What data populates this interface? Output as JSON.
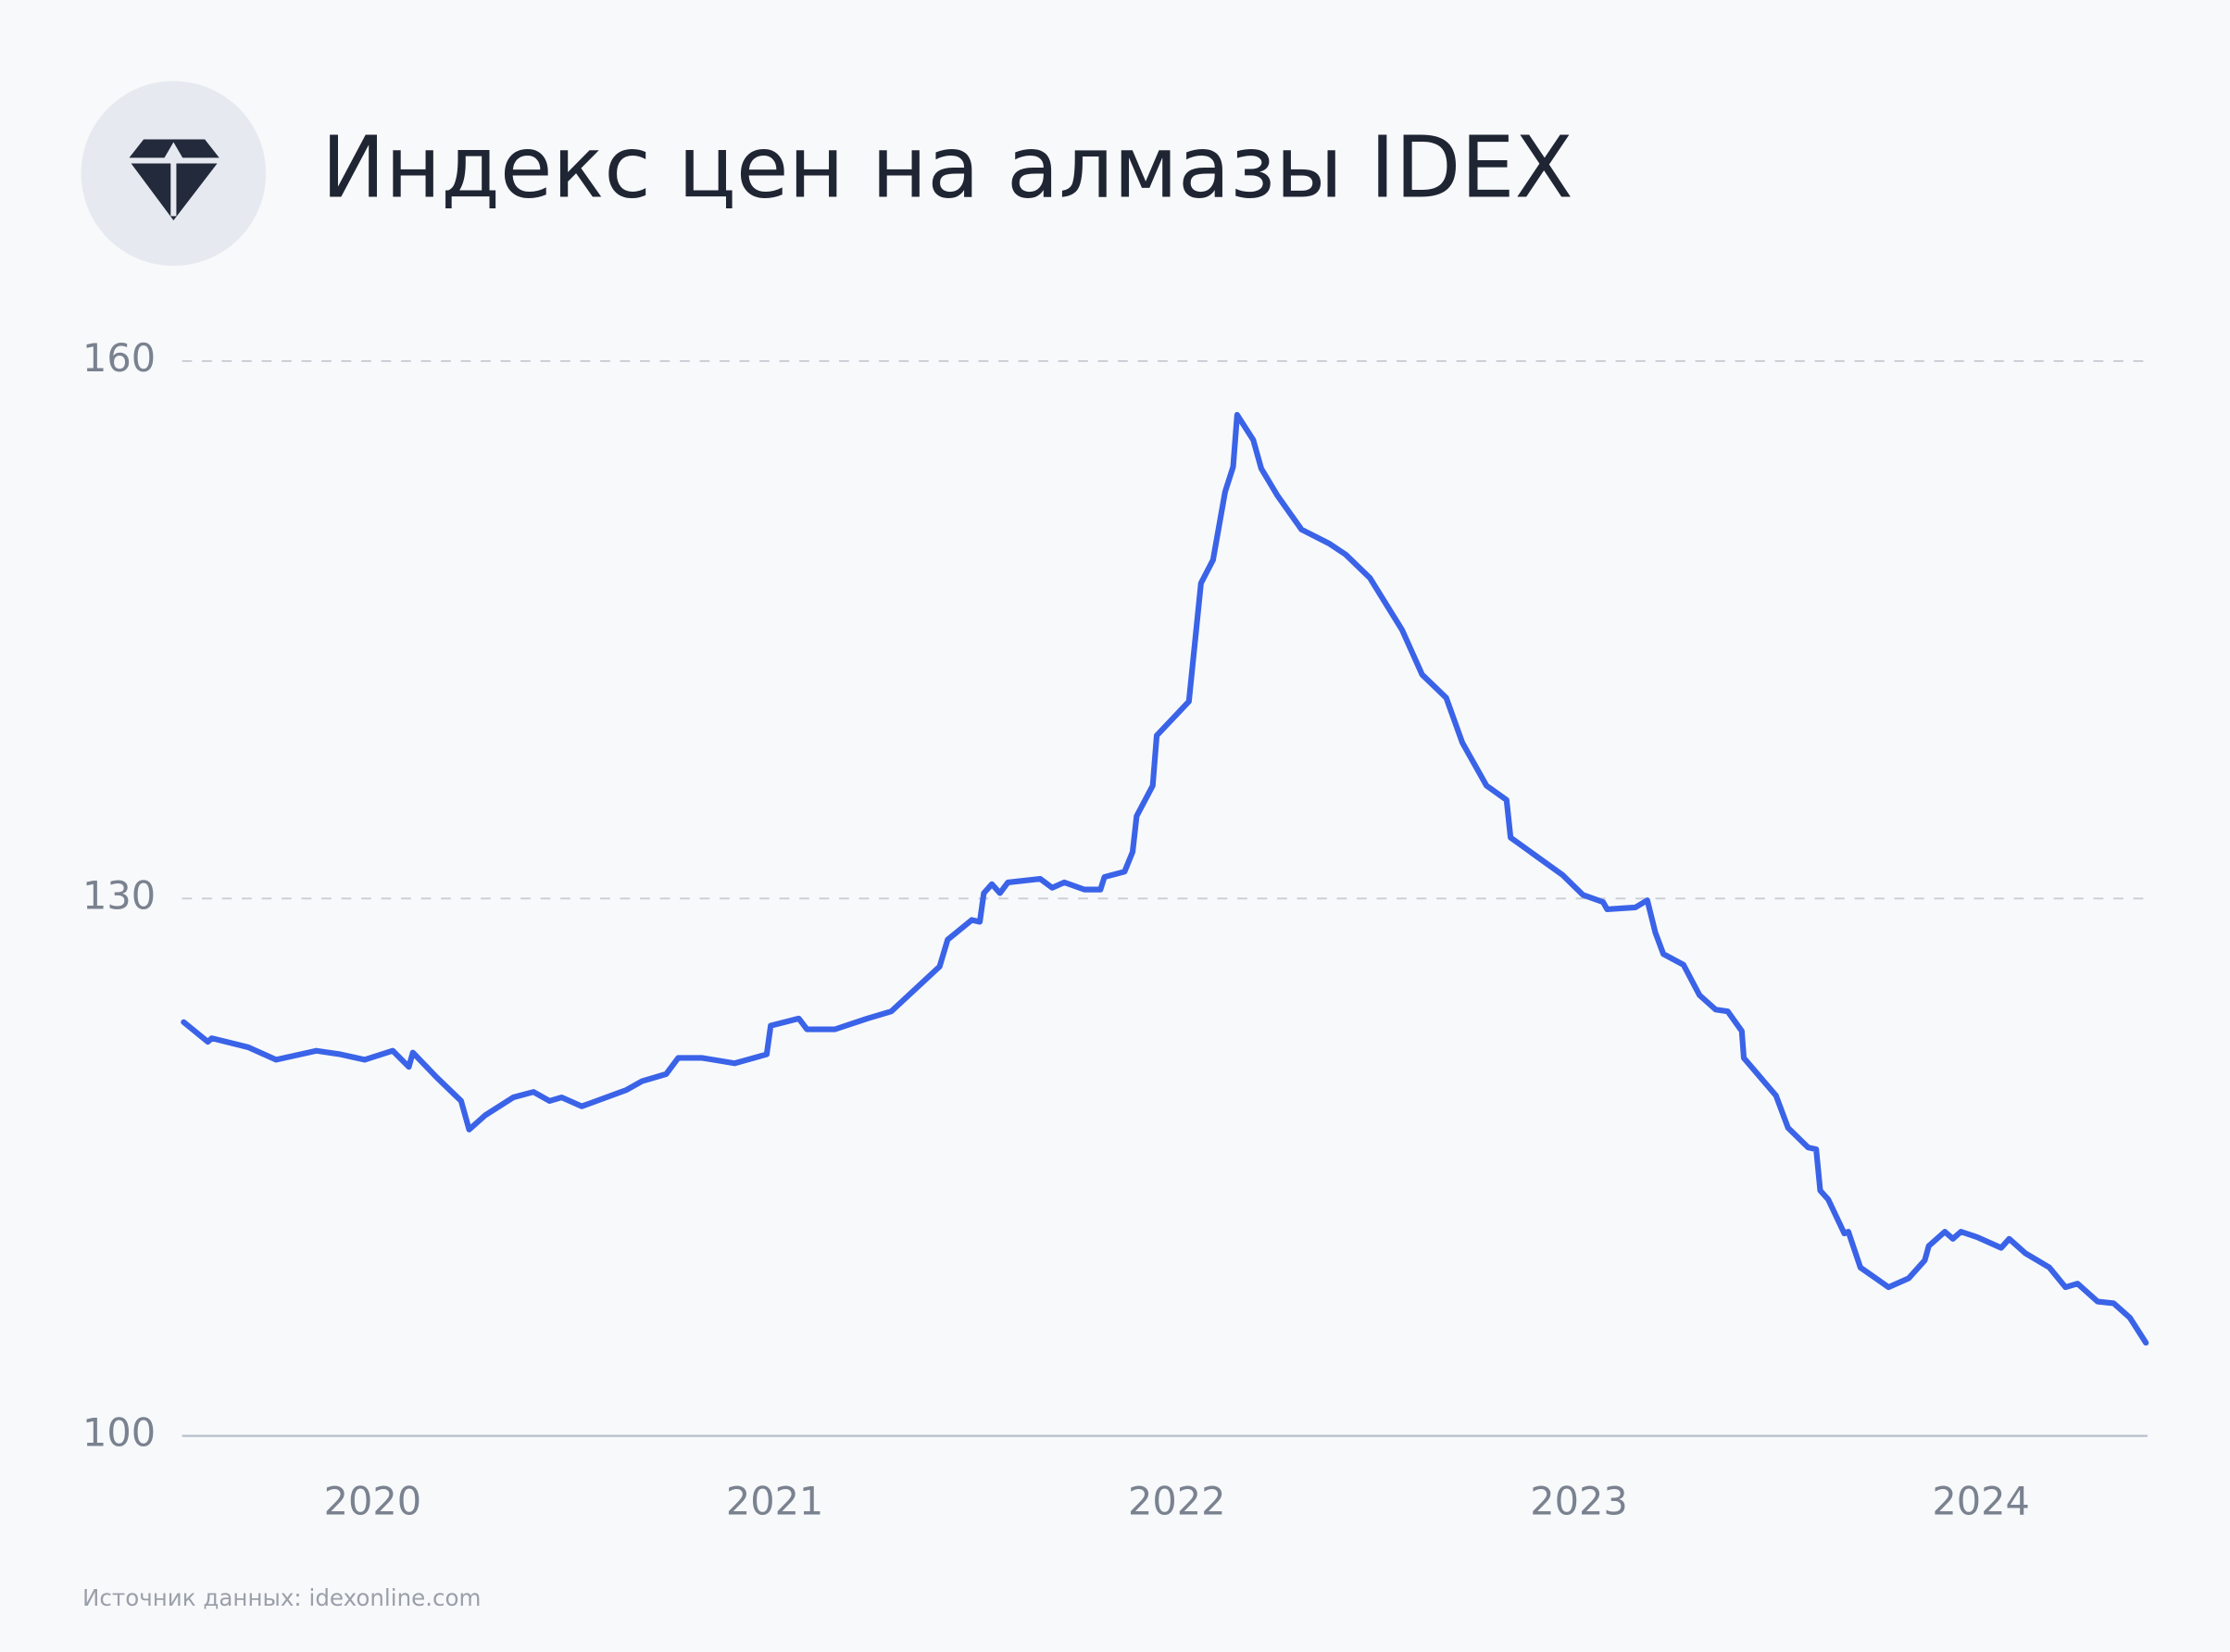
{
  "chart_data": {
    "type": "line",
    "title": "Индекс цен на алмазы IDEX",
    "source": "Источник данных: idexonline.com",
    "color": "#3a63e8",
    "grid": true,
    "xlim": [
      2019.526,
      2024.414
    ],
    "xticks": [
      2020,
      2021,
      2022,
      2023,
      2024
    ],
    "ylim": [
      100,
      160
    ],
    "yticks": [
      100,
      130,
      160
    ],
    "x": [
      2019.53,
      2019.59,
      2019.6,
      2019.69,
      2019.76,
      2019.86,
      2019.92,
      2019.98,
      2020.05,
      2020.09,
      2020.1,
      2020.16,
      2020.22,
      2020.24,
      2020.28,
      2020.35,
      2020.4,
      2020.44,
      2020.47,
      2020.52,
      2020.63,
      2020.67,
      2020.73,
      2020.76,
      2020.82,
      2020.9,
      2020.98,
      2020.99,
      2021.06,
      2021.08,
      2021.15,
      2021.23,
      2021.29,
      2021.41,
      2021.43,
      2021.49,
      2021.51,
      2021.52,
      2021.54,
      2021.56,
      2021.58,
      2021.66,
      2021.69,
      2021.72,
      2021.77,
      2021.81,
      2021.82,
      2021.87,
      2021.89,
      2021.9,
      2021.94,
      2021.95,
      2022.03,
      2022.06,
      2022.09,
      2022.12,
      2022.14,
      2022.15,
      2022.19,
      2022.21,
      2022.25,
      2022.31,
      2022.38,
      2022.42,
      2022.48,
      2022.56,
      2022.61,
      2022.67,
      2022.71,
      2022.77,
      2022.82,
      2022.83,
      2022.96,
      2023.01,
      2023.06,
      2023.07,
      2023.14,
      2023.17,
      2023.19,
      2023.21,
      2023.26,
      2023.3,
      2023.34,
      2023.37,
      2023.405,
      2023.41,
      2023.49,
      2023.52,
      2023.57,
      2023.59,
      2023.6,
      2023.62,
      2023.66,
      2023.67,
      2023.7,
      2023.77,
      2023.82,
      2023.86,
      2023.87,
      2023.91,
      2023.93,
      2023.95,
      2023.99,
      2024.05,
      2024.07,
      2024.11,
      2024.17,
      2024.21,
      2024.24,
      2024.29,
      2024.33,
      2024.37,
      2024.41
    ],
    "values": [
      123.1,
      122.0,
      122.2,
      121.7,
      121.0,
      121.5,
      121.3,
      121.0,
      121.5,
      120.6,
      121.4,
      120.0,
      118.7,
      117.1,
      117.9,
      118.9,
      119.2,
      118.7,
      118.9,
      118.4,
      119.3,
      119.8,
      120.2,
      121.1,
      121.1,
      120.8,
      121.3,
      122.9,
      123.3,
      122.7,
      122.7,
      123.3,
      123.7,
      126.2,
      127.7,
      128.8,
      128.7,
      130.3,
      130.8,
      130.3,
      130.9,
      131.1,
      130.6,
      130.9,
      130.5,
      130.5,
      131.2,
      131.5,
      132.6,
      134.6,
      136.3,
      139.1,
      141.0,
      147.6,
      148.9,
      152.7,
      154.1,
      157.0,
      155.6,
      154.0,
      152.5,
      150.6,
      149.8,
      149.2,
      147.9,
      145.0,
      142.5,
      141.2,
      138.7,
      136.3,
      135.5,
      133.4,
      131.3,
      130.2,
      129.8,
      129.4,
      129.5,
      129.9,
      128.1,
      126.9,
      126.3,
      124.6,
      123.8,
      123.7,
      122.6,
      121.1,
      119.0,
      117.2,
      116.1,
      116.0,
      113.7,
      113.2,
      111.3,
      111.4,
      109.4,
      108.3,
      108.8,
      109.8,
      110.6,
      111.4,
      111.0,
      111.4,
      111.1,
      110.5,
      111.0,
      110.2,
      109.4,
      108.3,
      108.5,
      107.5,
      107.4,
      106.6,
      105.2
    ]
  }
}
